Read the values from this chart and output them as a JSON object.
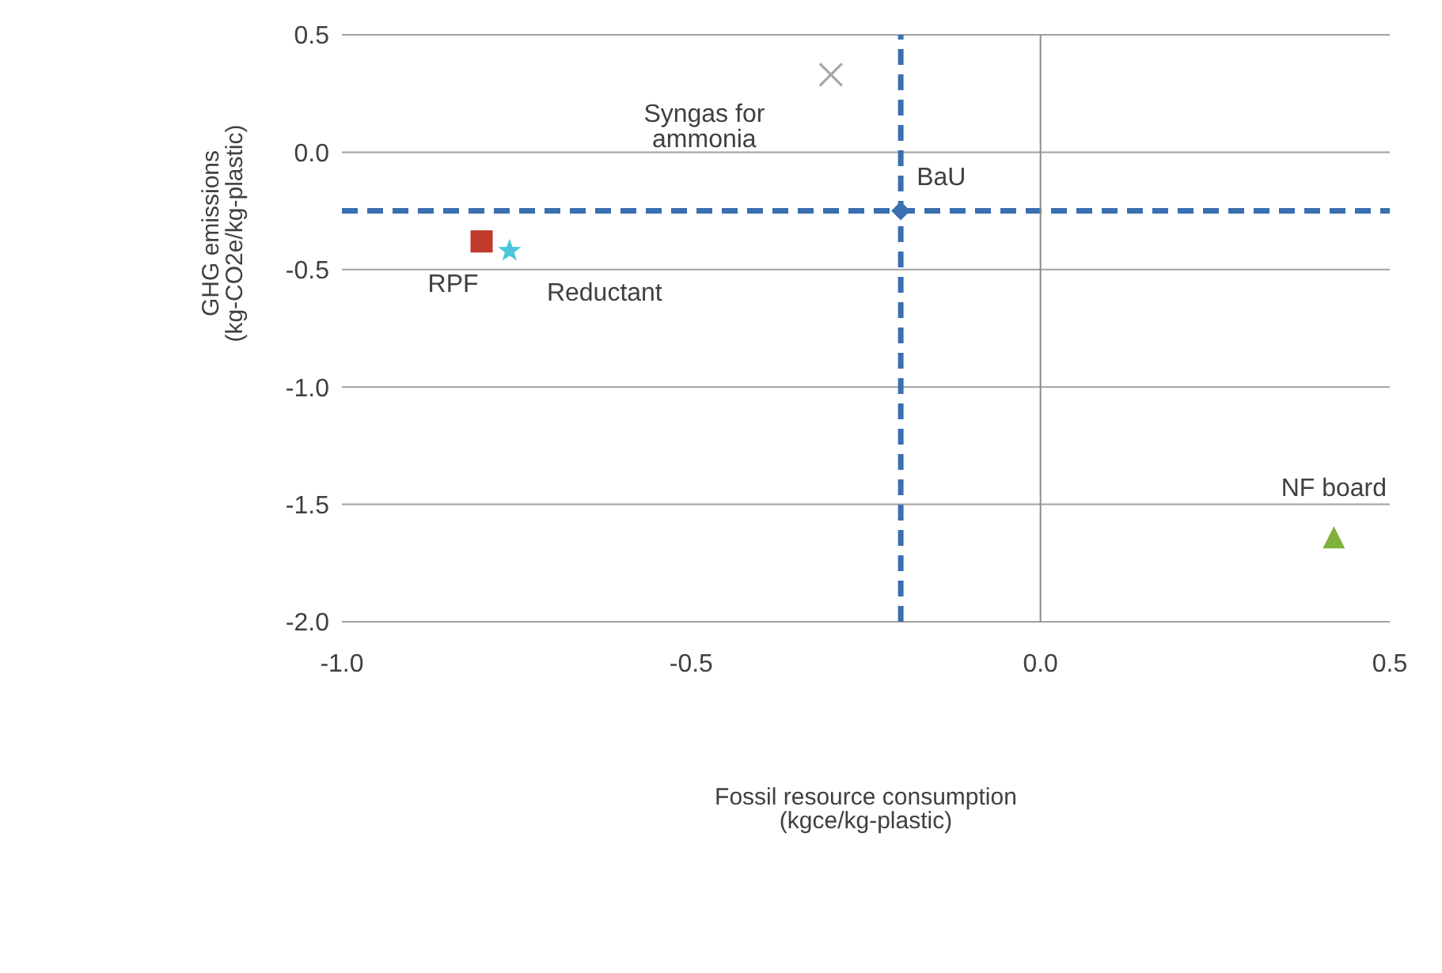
{
  "chart_data": {
    "type": "scatter",
    "xlabel": "Fossil resource consumption (kgce/kg-plastic)",
    "ylabel": "GHG emissions (kg-CO2e/kg-plastic)",
    "series": [
      {
        "name": "BaU",
        "color": "#3a6fb0",
        "marker": "diamond",
        "x": [
          -0.2
        ],
        "values": [
          -0.25
        ]
      },
      {
        "name": "Syngas for ammonia",
        "color": "#a6a6a6",
        "marker": "cross",
        "x": [
          -0.3
        ],
        "values": [
          0.33
        ]
      },
      {
        "name": "RPF",
        "color": "#c0392b",
        "marker": "square",
        "x": [
          -0.8
        ],
        "values": [
          -0.38
        ]
      },
      {
        "name": "Reductant",
        "color": "#4bc6d8",
        "marker": "star",
        "x": [
          -0.76
        ],
        "values": [
          -0.42
        ]
      },
      {
        "name": "NF board",
        "color": "#7fb23d",
        "marker": "triangle",
        "x": [
          0.42
        ],
        "values": [
          -1.64
        ]
      }
    ],
    "xlim": [
      -1.0,
      0.5
    ],
    "xticks": [
      {
        "value": -1,
        "label": "-1.0"
      },
      {
        "value": -0.5,
        "label": "-0.5"
      },
      {
        "value": 0,
        "label": "0.0"
      },
      {
        "value": 0.5,
        "label": "0.5"
      }
    ],
    "ylim": [
      -2.0,
      0.5
    ],
    "yticks": [
      {
        "value": -2,
        "label": "-2.0"
      },
      {
        "value": -1.5,
        "label": "-1.5"
      },
      {
        "value": -1,
        "label": "-1.0"
      },
      {
        "value": -0.5,
        "label": "-0.5"
      },
      {
        "value": 0,
        "label": "0.0"
      },
      {
        "value": 0.5,
        "label": "0.5"
      }
    ],
    "grid": "y",
    "legend": false,
    "ref_lines": [
      {
        "axis": "x",
        "value": -0.2,
        "color": "#3a6fb0",
        "line_style": "dashed"
      },
      {
        "axis": "y",
        "value": -0.25,
        "color": "#3a6fb0",
        "line_style": "dashed"
      },
      {
        "axis": "x",
        "value": 0,
        "color": "#8c8c8c",
        "line_style": "solid"
      }
    ]
  }
}
